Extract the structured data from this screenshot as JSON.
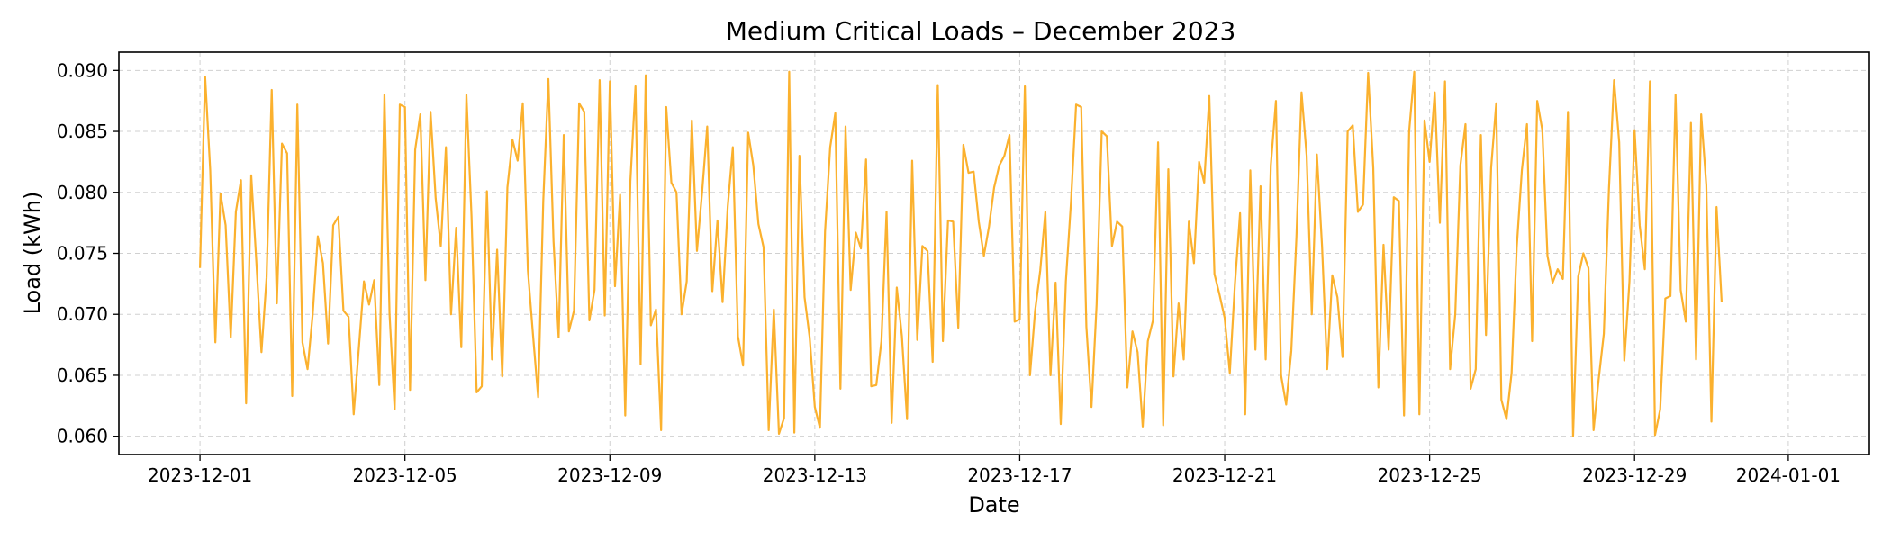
{
  "chart_data": {
    "type": "line",
    "title": "Medium Critical Loads – December 2023",
    "xlabel": "Date",
    "ylabel": "Load (kWh)",
    "x_ticks": [
      "2023-12-01",
      "2023-12-05",
      "2023-12-09",
      "2023-12-13",
      "2023-12-17",
      "2023-12-21",
      "2023-12-25",
      "2023-12-29",
      "2024-01-01"
    ],
    "y_ticks": [
      "0.060",
      "0.065",
      "0.070",
      "0.075",
      "0.080",
      "0.085",
      "0.090"
    ],
    "xlim": [
      "2023-11-29T10:00",
      "2024-01-02T14:00"
    ],
    "ylim": [
      0.0585,
      0.0915
    ],
    "grid": true,
    "color": "#FBB12E",
    "x_start": "2023-12-01T00:00",
    "x_step_hours": 2.4,
    "values": [
      0.0738,
      0.0895,
      0.0818,
      0.0677,
      0.0799,
      0.0773,
      0.0681,
      0.0784,
      0.081,
      0.0627,
      0.0814,
      0.0743,
      0.0669,
      0.073,
      0.0884,
      0.0709,
      0.084,
      0.0832,
      0.0633,
      0.0872,
      0.0677,
      0.0655,
      0.07,
      0.0764,
      0.0742,
      0.0676,
      0.0773,
      0.078,
      0.0703,
      0.0698,
      0.0618,
      0.0672,
      0.0727,
      0.0708,
      0.0728,
      0.0642,
      0.088,
      0.07,
      0.0622,
      0.0872,
      0.087,
      0.0638,
      0.0835,
      0.0864,
      0.0728,
      0.0866,
      0.0795,
      0.0756,
      0.0837,
      0.07,
      0.0771,
      0.0673,
      0.088,
      0.078,
      0.0636,
      0.0641,
      0.0801,
      0.0663,
      0.0753,
      0.0649,
      0.0804,
      0.0843,
      0.0826,
      0.0873,
      0.0736,
      0.0683,
      0.0632,
      0.0793,
      0.0893,
      0.076,
      0.0681,
      0.0847,
      0.0686,
      0.0703,
      0.0873,
      0.0866,
      0.0695,
      0.072,
      0.0892,
      0.0699,
      0.0891,
      0.0723,
      0.0798,
      0.0617,
      0.0809,
      0.0887,
      0.0659,
      0.0896,
      0.0691,
      0.0704,
      0.0605,
      0.087,
      0.0808,
      0.08,
      0.07,
      0.0727,
      0.0859,
      0.0752,
      0.08,
      0.0854,
      0.0719,
      0.0777,
      0.071,
      0.0788,
      0.0837,
      0.0682,
      0.0658,
      0.0849,
      0.0822,
      0.0774,
      0.0755,
      0.0605,
      0.0704,
      0.0602,
      0.0615,
      0.0899,
      0.0603,
      0.083,
      0.0714,
      0.0681,
      0.0624,
      0.0607,
      0.0768,
      0.0837,
      0.0865,
      0.0639,
      0.0854,
      0.072,
      0.0767,
      0.0754,
      0.0827,
      0.0641,
      0.0642,
      0.0678,
      0.0784,
      0.0611,
      0.0722,
      0.0682,
      0.0614,
      0.0826,
      0.0679,
      0.0756,
      0.0752,
      0.0661,
      0.0888,
      0.0678,
      0.0777,
      0.0776,
      0.0689,
      0.0839,
      0.0816,
      0.0817,
      0.0776,
      0.0748,
      0.0772,
      0.0804,
      0.0822,
      0.083,
      0.0847,
      0.0694,
      0.0696,
      0.0887,
      0.065,
      0.0703,
      0.0736,
      0.0784,
      0.065,
      0.0726,
      0.061,
      0.0727,
      0.0792,
      0.0872,
      0.087,
      0.069,
      0.0624,
      0.0708,
      0.085,
      0.0846,
      0.0756,
      0.0776,
      0.0772,
      0.064,
      0.0686,
      0.0669,
      0.0608,
      0.0678,
      0.0695,
      0.0841,
      0.0609,
      0.0819,
      0.0649,
      0.0709,
      0.0663,
      0.0776,
      0.0742,
      0.0825,
      0.0808,
      0.0879,
      0.0733,
      0.0716,
      0.0697,
      0.0652,
      0.0725,
      0.0783,
      0.0618,
      0.0818,
      0.0671,
      0.0805,
      0.0663,
      0.0822,
      0.0875,
      0.065,
      0.0626,
      0.067,
      0.0763,
      0.0882,
      0.083,
      0.07,
      0.0831,
      0.0756,
      0.0655,
      0.0732,
      0.0714,
      0.0665,
      0.085,
      0.0855,
      0.0784,
      0.079,
      0.0898,
      0.082,
      0.064,
      0.0757,
      0.0671,
      0.0796,
      0.0793,
      0.0617,
      0.085,
      0.0899,
      0.0618,
      0.0859,
      0.0825,
      0.0882,
      0.0775,
      0.0891,
      0.0655,
      0.07,
      0.0822,
      0.0856,
      0.0639,
      0.0655,
      0.0847,
      0.0683,
      0.082,
      0.0873,
      0.063,
      0.0614,
      0.0652,
      0.0755,
      0.0818,
      0.0856,
      0.0678,
      0.0875,
      0.0851,
      0.0748,
      0.0726,
      0.0737,
      0.0729,
      0.0866,
      0.06,
      0.0731,
      0.075,
      0.0738,
      0.0605,
      0.0647,
      0.0684,
      0.0803,
      0.0892,
      0.0841,
      0.0662,
      0.0727,
      0.0851,
      0.0773,
      0.0737,
      0.0891,
      0.0601,
      0.0622,
      0.0713,
      0.0715,
      0.088,
      0.072,
      0.0694,
      0.0857,
      0.0663,
      0.0864,
      0.0806,
      0.0612,
      0.0788,
      0.071
    ]
  }
}
